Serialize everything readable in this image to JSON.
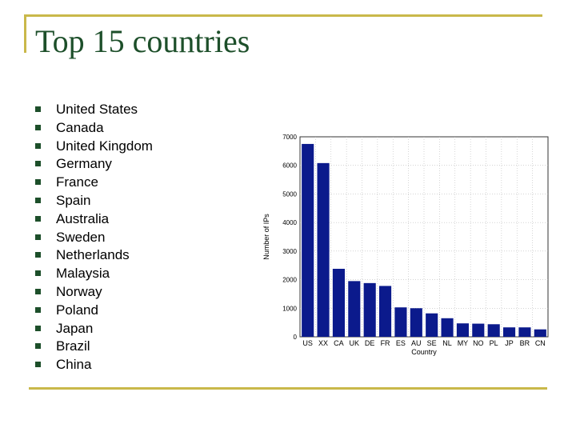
{
  "slide": {
    "title": "Top 15 countries",
    "bullets": [
      "United States",
      "Canada",
      "United Kingdom",
      "Germany",
      "France",
      "Spain",
      "Australia",
      "Sweden",
      "Netherlands",
      "Malaysia",
      "Norway",
      "Poland",
      "Japan",
      "Brazil",
      "China"
    ]
  },
  "colors": {
    "accent": "#c9b84a",
    "title": "#1d4f2a",
    "bar": "#0b1a8c"
  },
  "chart_data": {
    "type": "bar",
    "title": "",
    "xlabel": "Country",
    "ylabel": "Number of IPs",
    "categories": [
      "US",
      "XX",
      "CA",
      "UK",
      "DE",
      "FR",
      "ES",
      "AU",
      "SE",
      "NL",
      "MY",
      "NO",
      "PL",
      "JP",
      "BR",
      "CN"
    ],
    "values": [
      6750,
      6080,
      2380,
      1950,
      1880,
      1780,
      1030,
      1000,
      820,
      650,
      470,
      460,
      440,
      330,
      330,
      260
    ],
    "ylim": [
      0,
      7000
    ],
    "yticks": [
      0,
      1000,
      2000,
      3000,
      4000,
      5000,
      6000,
      7000
    ],
    "grid": true
  }
}
